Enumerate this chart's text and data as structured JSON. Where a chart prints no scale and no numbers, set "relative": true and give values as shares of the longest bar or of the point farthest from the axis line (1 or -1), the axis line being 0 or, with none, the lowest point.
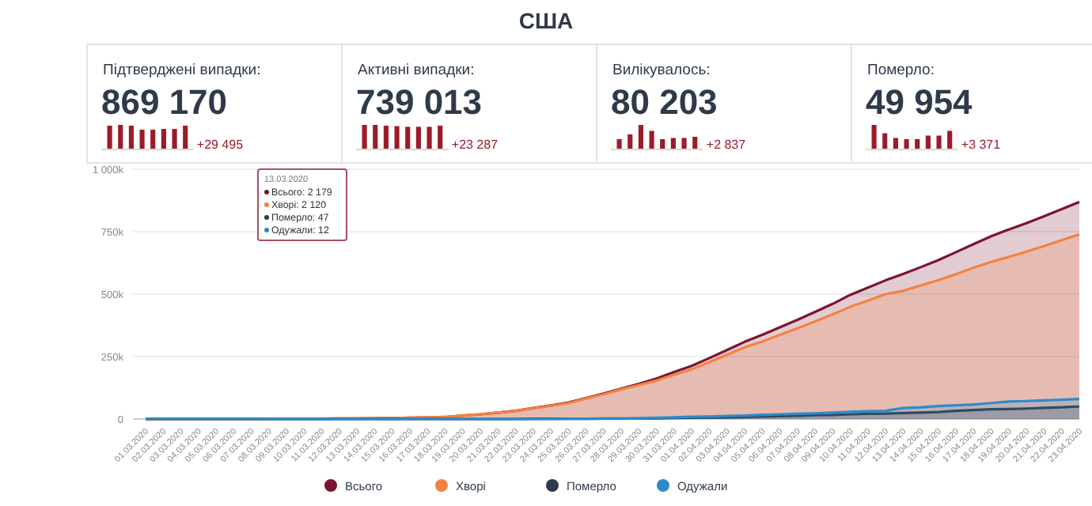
{
  "chart_data": [
    {
      "type": "other",
      "title": "США"
    },
    {
      "type": "bar",
      "relative": true,
      "subtitle": "Підтверджені випадки:",
      "annotations": [
        "869 170",
        "+29 495"
      ],
      "color": "#9b1b2a",
      "categories": [
        null,
        null,
        null,
        null,
        null,
        null,
        null,
        null
      ],
      "values": [
        0.97,
        1,
        0.97,
        0.8,
        0.8,
        0.83,
        0.83,
        0.97
      ]
    },
    {
      "type": "bar",
      "relative": true,
      "subtitle": "Активні випадки:",
      "annotations": [
        "739 013",
        "+23 287"
      ],
      "color": "#9b1b2a",
      "categories": [
        null,
        null,
        null,
        null,
        null,
        null,
        null,
        null
      ],
      "values": [
        1,
        1,
        0.97,
        0.95,
        0.92,
        0.92,
        0.92,
        0.97
      ]
    },
    {
      "type": "bar",
      "relative": true,
      "subtitle": "Вилікувалось:",
      "annotations": [
        "80 203",
        "+2 837"
      ],
      "color": "#9b1b2a",
      "categories": [
        null,
        null,
        null,
        null,
        null,
        null,
        null,
        null
      ],
      "values": [
        0.4,
        0.6,
        1,
        0.75,
        0.4,
        0.45,
        0.45,
        0.5
      ]
    },
    {
      "type": "bar",
      "relative": true,
      "subtitle": "Померло:",
      "annotations": [
        "49 954",
        "+3 371"
      ],
      "color": "#9b1b2a",
      "categories": [
        null,
        null,
        null,
        null,
        null,
        null,
        null,
        null
      ],
      "values": [
        1,
        0.65,
        0.45,
        0.4,
        0.4,
        0.55,
        0.55,
        0.75
      ]
    },
    {
      "type": "area",
      "grid": "y",
      "legend": "bottom",
      "marker": "none",
      "ylim": [
        0,
        1000
      ],
      "yticks": [
        0,
        {
          "value": 250,
          "label": "250k"
        },
        {
          "value": 500,
          "label": "500k"
        },
        {
          "value": 750,
          "label": "750k"
        },
        {
          "value": 1000,
          "label": "1 000k"
        }
      ],
      "categories": [
        "01.03.2020",
        "02.03.2020",
        "03.03.2020",
        "04.03.2020",
        "05.03.2020",
        "06.03.2020",
        "07.03.2020",
        "08.03.2020",
        "09.03.2020",
        "10.03.2020",
        "11.03.2020",
        "12.03.2020",
        "13.03.2020",
        "14.03.2020",
        "15.03.2020",
        "16.03.2020",
        "17.03.2020",
        "18.03.2020",
        "19.03.2020",
        "20.03.2020",
        "21.03.2020",
        "22.03.2020",
        "23.03.2020",
        "24.03.2020",
        "25.03.2020",
        "26.03.2020",
        "27.03.2020",
        "28.03.2020",
        "29.03.2020",
        "30.03.2020",
        "31.03.2020",
        "01.04.2020",
        "02.04.2020",
        "03.04.2020",
        "04.04.2020",
        "05.04.2020",
        "06.04.2020",
        "07.04.2020",
        "08.04.2020",
        "09.04.2020",
        "10.04.2020",
        "11.04.2020",
        "12.04.2020",
        "13.04.2020",
        "14.04.2020",
        "15.04.2020",
        "16.04.2020",
        "17.04.2020",
        "18.04.2020",
        "19.04.2020",
        "20.04.2020",
        "21.04.2020",
        "22.04.2020",
        "23.04.2020"
      ],
      "series": [
        {
          "name": "Всього",
          "color": "#7b1530",
          "values": [
            0,
            0,
            0,
            0,
            0,
            0,
            0,
            1,
            1,
            1,
            1,
            2,
            2,
            3,
            4,
            5,
            6,
            8,
            14,
            19,
            26,
            33,
            44,
            54,
            66,
            84,
            102,
            122,
            141,
            162,
            188,
            213,
            244,
            276,
            309,
            337,
            367,
            397,
            429,
            461,
            497,
            526,
            555,
            581,
            608,
            636,
            668,
            700,
            732,
            759,
            784,
            812,
            840,
            869
          ]
        },
        {
          "name": "Хворі",
          "color": "#f5813f",
          "values": [
            0,
            0,
            0,
            0,
            0,
            0,
            0,
            1,
            1,
            1,
            1,
            2,
            2,
            3,
            4,
            5,
            6,
            8,
            14,
            19,
            26,
            33,
            43,
            53,
            64,
            82,
            99,
            119,
            136,
            154,
            177,
            199,
            228,
            257,
            287,
            310,
            337,
            363,
            391,
            419,
            449,
            474,
            500,
            513,
            535,
            556,
            580,
            606,
            629,
            649,
            670,
            692,
            716,
            739
          ]
        },
        {
          "name": "Померло",
          "color": "#2e3a4a",
          "values": [
            0,
            0,
            0,
            0,
            0,
            0,
            0,
            0,
            0,
            0,
            0,
            0,
            0,
            0,
            0,
            0,
            0,
            0,
            0,
            0,
            0,
            0,
            1,
            1,
            1,
            1,
            2,
            2,
            2,
            3,
            4,
            5,
            6,
            7,
            8,
            10,
            11,
            13,
            15,
            16,
            19,
            21,
            22,
            24,
            26,
            28,
            33,
            36,
            39,
            40,
            42,
            45,
            47,
            50
          ]
        },
        {
          "name": "Одужали",
          "color": "#2e8bc9",
          "values": [
            0,
            0,
            0,
            0,
            0,
            0,
            0,
            0,
            0,
            0,
            0,
            0,
            0,
            0,
            0,
            0,
            0,
            0,
            0,
            0,
            0,
            0,
            0,
            0,
            1,
            1,
            1,
            1,
            3,
            5,
            7,
            9,
            10,
            12,
            14,
            17,
            19,
            21,
            23,
            26,
            29,
            31,
            33,
            44,
            47,
            52,
            55,
            58,
            64,
            70,
            72,
            75,
            77,
            80
          ]
        }
      ],
      "annotations": [
        "13.03.2020",
        "Всього: 2 179",
        "Хворі: 2 120",
        "Померло: 47",
        "Одужали: 12"
      ]
    }
  ]
}
